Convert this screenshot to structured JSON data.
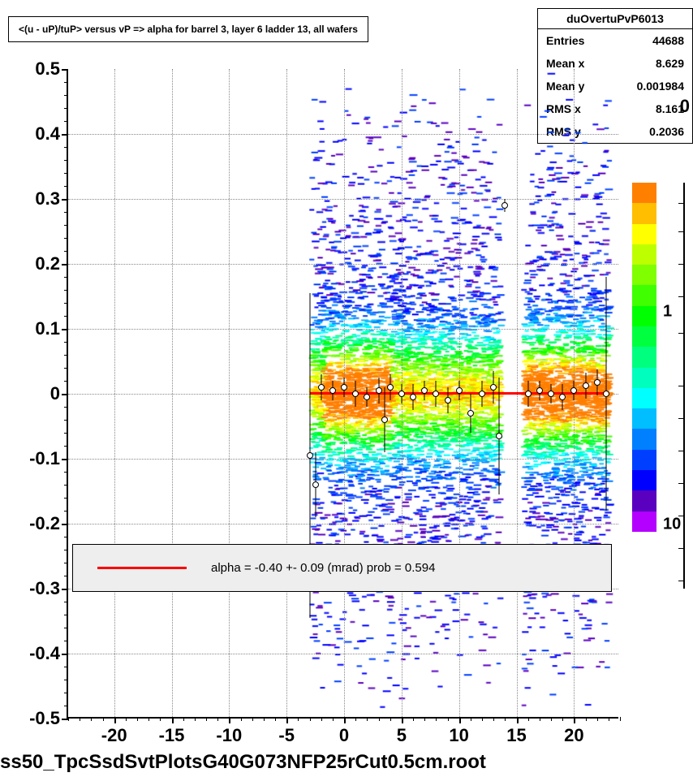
{
  "title": "<(u - uP)/tuP> versus   vP => alpha for barrel 3, layer 6 ladder 13, all wafers",
  "stats": {
    "name": "duOvertuPvP6013",
    "entries_label": "Entries",
    "entries": "44688",
    "meanx_label": "Mean x",
    "meanx": "8.629",
    "meany_label": "Mean y",
    "meany": "0.001984",
    "rmsx_label": "RMS x",
    "rmsx": "8.161",
    "rmsy_label": "RMS y",
    "rmsy": "0.2036"
  },
  "chart": {
    "type": "2d-histogram-with-profile",
    "xlim": [
      -24,
      24
    ],
    "ylim": [
      -0.5,
      0.5
    ],
    "y_ticks": [
      -0.5,
      -0.4,
      -0.3,
      -0.2,
      -0.1,
      0,
      0.1,
      0.2,
      0.3,
      0.4,
      0.5
    ],
    "x_ticks": [
      -20,
      -15,
      -10,
      -5,
      0,
      5,
      10,
      15,
      20
    ],
    "x_minor_step": 1,
    "y_minor_step": 0.02,
    "grid_color": "#888888",
    "background_color": "#ffffff",
    "fit_line": {
      "color": "#ff0000",
      "width": 3,
      "x_start": -3,
      "x_end": 23,
      "y_start": 0.005,
      "y_end": 0.001
    },
    "heatmap_x_start": -3,
    "heatmap_x_end": 23,
    "heatmap_gaps": [
      [
        13.5,
        15.5
      ]
    ],
    "profile_points": [
      {
        "x": -3,
        "y": -0.095,
        "err": 0.25
      },
      {
        "x": -2.5,
        "y": -0.14,
        "err": 0.05
      },
      {
        "x": -2,
        "y": 0.01,
        "err": 0.02
      },
      {
        "x": -1,
        "y": 0.005,
        "err": 0.015
      },
      {
        "x": 0,
        "y": 0.01,
        "err": 0.015
      },
      {
        "x": 1,
        "y": 0.0,
        "err": 0.02
      },
      {
        "x": 2,
        "y": -0.005,
        "err": 0.015
      },
      {
        "x": 3,
        "y": 0.005,
        "err": 0.02
      },
      {
        "x": 3.5,
        "y": -0.04,
        "err": 0.05
      },
      {
        "x": 4,
        "y": 0.01,
        "err": 0.02
      },
      {
        "x": 5,
        "y": 0.0,
        "err": 0.015
      },
      {
        "x": 6,
        "y": -0.005,
        "err": 0.02
      },
      {
        "x": 7,
        "y": 0.005,
        "err": 0.015
      },
      {
        "x": 8,
        "y": 0.0,
        "err": 0.02
      },
      {
        "x": 9,
        "y": -0.01,
        "err": 0.02
      },
      {
        "x": 10,
        "y": 0.005,
        "err": 0.015
      },
      {
        "x": 11,
        "y": -0.03,
        "err": 0.03
      },
      {
        "x": 12,
        "y": 0.0,
        "err": 0.02
      },
      {
        "x": 13,
        "y": 0.01,
        "err": 0.025
      },
      {
        "x": 13.5,
        "y": -0.065,
        "err": 0.09
      },
      {
        "x": 14,
        "y": 0.29,
        "err": 0.01
      },
      {
        "x": 16,
        "y": 0.0,
        "err": 0.02
      },
      {
        "x": 17,
        "y": 0.005,
        "err": 0.015
      },
      {
        "x": 18,
        "y": 0.0,
        "err": 0.015
      },
      {
        "x": 19,
        "y": -0.005,
        "err": 0.02
      },
      {
        "x": 20,
        "y": 0.005,
        "err": 0.015
      },
      {
        "x": 21,
        "y": 0.012,
        "err": 0.02
      },
      {
        "x": 22,
        "y": 0.018,
        "err": 0.02
      },
      {
        "x": 22.8,
        "y": 0.0,
        "err": 0.18
      }
    ]
  },
  "legend": {
    "text": "alpha =   -0.40 +-  0.09 (mrad) prob = 0.594"
  },
  "colorbar": {
    "colors": [
      "#ff7f00",
      "#ffbe00",
      "#ffff00",
      "#beff00",
      "#7fff00",
      "#3fff00",
      "#00ff00",
      "#00ff3f",
      "#00ff7f",
      "#00ffbe",
      "#00ffff",
      "#00beff",
      "#007fff",
      "#003fff",
      "#0000ff",
      "#5a00bf",
      "#b400ff"
    ],
    "ticks": [
      {
        "label": "1",
        "pos": 0.37
      },
      {
        "label": "10",
        "pos": 0.98
      }
    ],
    "outer_label": "0"
  },
  "footer": "ss50_TpcSsdSvtPlotsG40G073NFP25rCut0.5cm.root"
}
